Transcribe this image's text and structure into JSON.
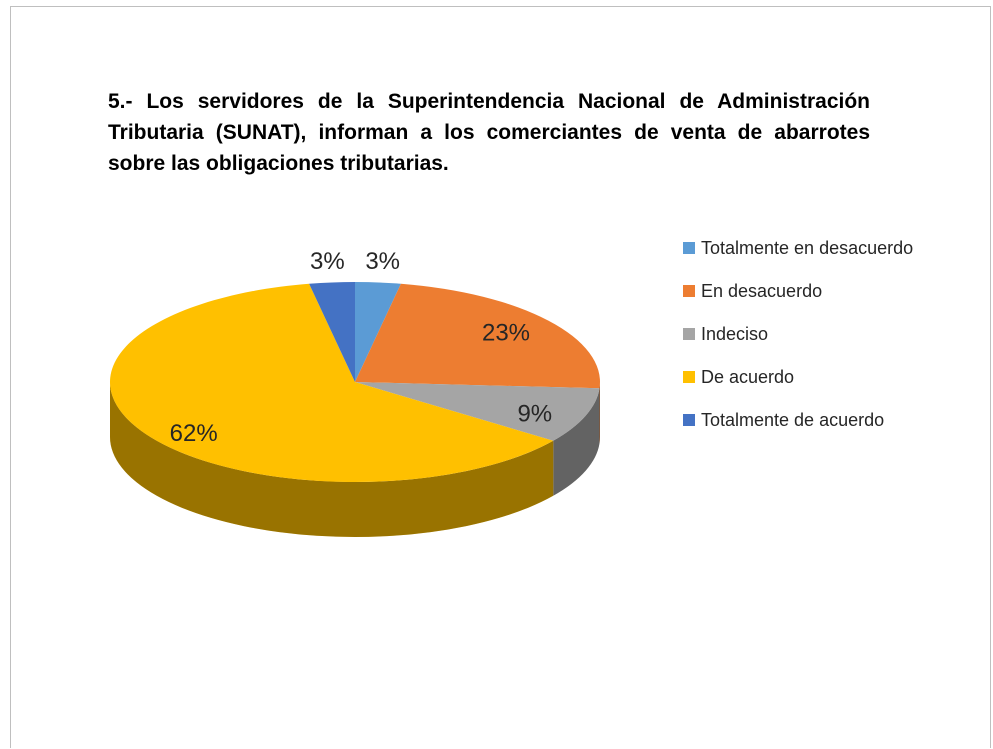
{
  "chart_data": {
    "type": "pie",
    "title": "5.- Los servidores de la Superintendencia Nacional de Administración Tributaria (SUNAT), informan a los comerciantes de venta de abarrotes sobre las obligaciones tributarias.",
    "categories": [
      "Totalmente en desacuerdo",
      "En desacuerdo",
      "Indeciso",
      "De acuerdo",
      "Totalmente de acuerdo"
    ],
    "values": [
      3,
      23,
      9,
      62,
      3
    ],
    "value_labels": [
      "3%",
      "23%",
      "9%",
      "62%",
      "3%"
    ],
    "colors": [
      "#5b9bd5",
      "#ed7d31",
      "#a5a5a5",
      "#ffc000",
      "#4472c4"
    ],
    "legend": "right"
  }
}
